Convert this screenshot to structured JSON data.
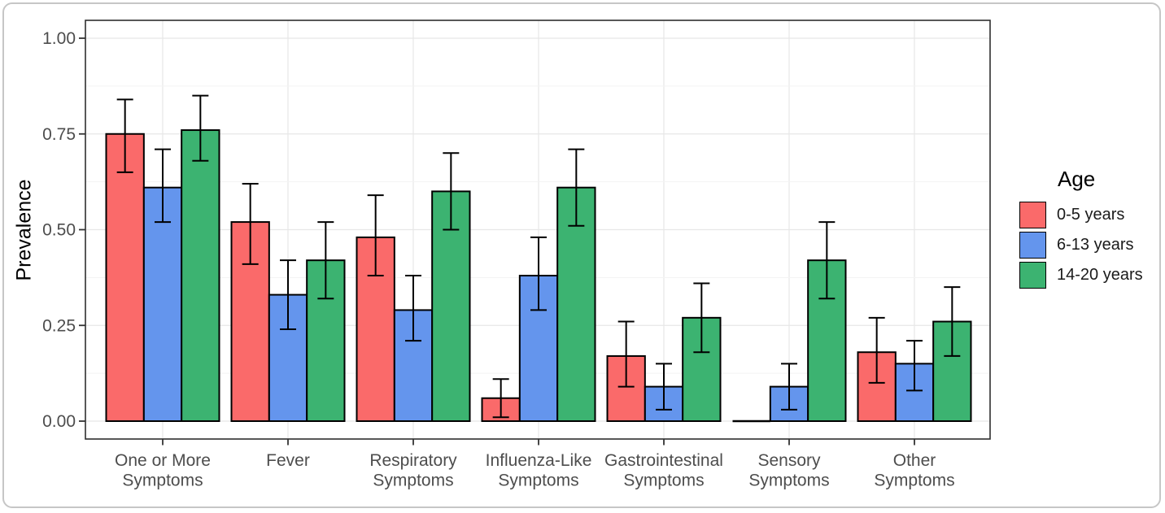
{
  "figure": {
    "y_axis_title": "Prevalence",
    "legend_title": "Age"
  },
  "chart_data": {
    "type": "bar",
    "title": "",
    "xlabel": "",
    "ylabel": "Prevalence",
    "ylim": [
      0,
      1.0
    ],
    "ytick_labels": [
      "0.00",
      "0.25",
      "0.50",
      "0.75",
      "1.00"
    ],
    "grid": "horizontal major+minor gridlines, vertical gridline at each category center",
    "legend_position": "right",
    "legend_title": "Age",
    "error_bars": "confidence interval whiskers with caps",
    "categories": [
      "One or More\nSymptoms",
      "Fever",
      "Respiratory\nSymptoms",
      "Influenza-Like\nSymptoms",
      "Gastrointestinal\nSymptoms",
      "Sensory\nSymptoms",
      "Other\nSymptoms"
    ],
    "series": [
      {
        "name": "0-5 years",
        "color": "#FA6A6A",
        "values": [
          0.75,
          0.52,
          0.48,
          0.06,
          0.17,
          0.0,
          0.18
        ],
        "ci_low": [
          0.65,
          0.41,
          0.38,
          0.01,
          0.09,
          null,
          0.1
        ],
        "ci_high": [
          0.84,
          0.62,
          0.59,
          0.11,
          0.26,
          null,
          0.27
        ]
      },
      {
        "name": "6-13 years",
        "color": "#6495ED",
        "values": [
          0.61,
          0.33,
          0.29,
          0.38,
          0.09,
          0.09,
          0.15
        ],
        "ci_low": [
          0.52,
          0.24,
          0.21,
          0.29,
          0.03,
          0.03,
          0.08
        ],
        "ci_high": [
          0.71,
          0.42,
          0.38,
          0.48,
          0.15,
          0.15,
          0.21
        ]
      },
      {
        "name": "14-20 years",
        "color": "#3CB371",
        "values": [
          0.76,
          0.42,
          0.6,
          0.61,
          0.27,
          0.42,
          0.26
        ],
        "ci_low": [
          0.68,
          0.32,
          0.5,
          0.51,
          0.18,
          0.32,
          0.17
        ],
        "ci_high": [
          0.85,
          0.52,
          0.7,
          0.71,
          0.36,
          0.52,
          0.35
        ]
      }
    ]
  }
}
